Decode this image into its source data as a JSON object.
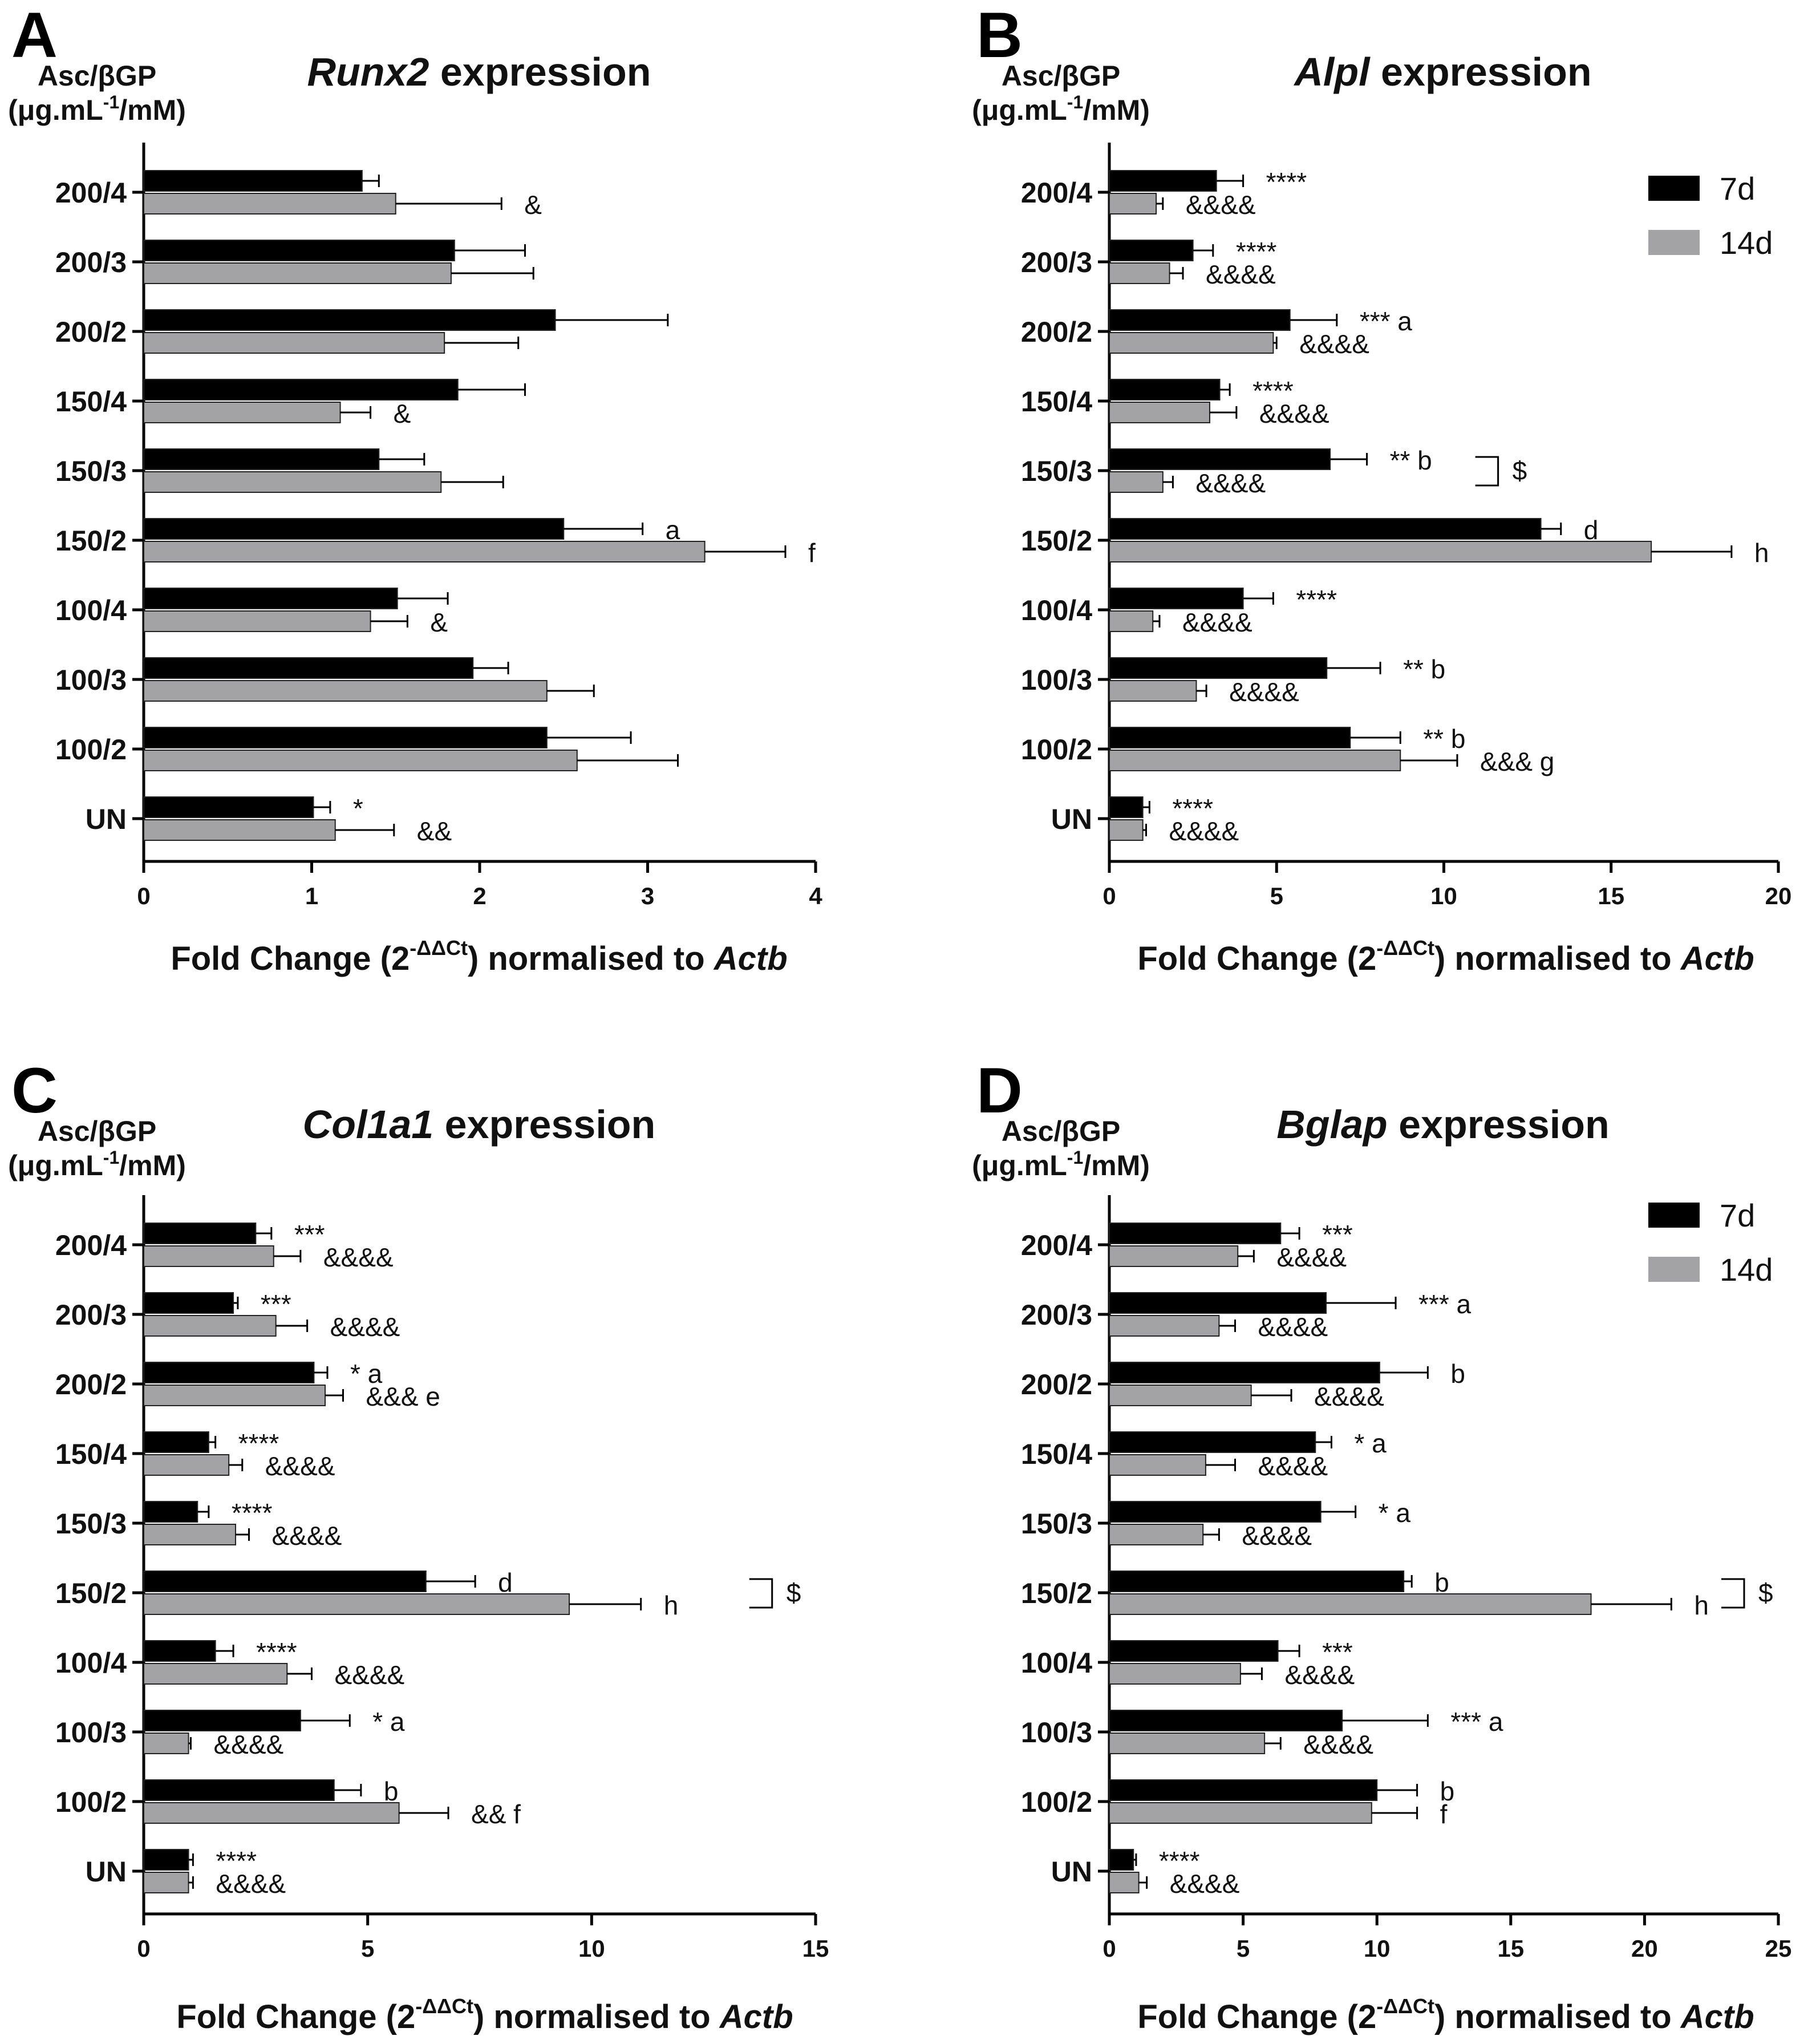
{
  "figure": {
    "legend_labels": [
      "7d",
      "14d"
    ],
    "colors": {
      "7d": "#000000",
      "14d": "#a3a3a5"
    }
  },
  "chart_data": [
    {
      "type": "bar",
      "orientation": "horizontal",
      "panel": "A",
      "title_gene": "Runx2",
      "title_rest": " expression",
      "ylabel_line1": "Asc/βGP",
      "ylabel_line2_pre": "(μg.mL",
      "ylabel_line2_sup": "-1",
      "ylabel_line2_post": "/mM)",
      "xlabel_pre": "Fold Change (2",
      "xlabel_sup": "-ΔΔCt",
      "xlabel_mid": ") normalised to ",
      "xlabel_gene": "Actb",
      "xlim": [
        0,
        4
      ],
      "xticks": [
        0,
        1,
        2,
        3,
        4
      ],
      "show_legend": false,
      "categories": [
        "200/4",
        "200/3",
        "200/2",
        "150/4",
        "150/3",
        "150/2",
        "100/4",
        "100/3",
        "100/2",
        "UN"
      ],
      "series": [
        {
          "name": "7d",
          "values": [
            1.3,
            1.85,
            2.45,
            1.87,
            1.4,
            2.5,
            1.51,
            1.96,
            2.4,
            1.01
          ],
          "errors": [
            0.1,
            0.42,
            0.67,
            0.4,
            0.27,
            0.47,
            0.3,
            0.21,
            0.5,
            0.1
          ],
          "annotations": [
            null,
            null,
            null,
            null,
            null,
            "a",
            null,
            null,
            null,
            "*"
          ]
        },
        {
          "name": "14d",
          "values": [
            1.5,
            1.83,
            1.79,
            1.17,
            1.77,
            3.34,
            1.35,
            2.4,
            2.58,
            1.14
          ],
          "errors": [
            0.63,
            0.49,
            0.44,
            0.18,
            0.37,
            0.48,
            0.22,
            0.28,
            0.6,
            0.35
          ],
          "annotations": [
            "&",
            null,
            null,
            "&",
            null,
            "f",
            "&",
            null,
            null,
            "&&"
          ]
        }
      ],
      "brackets": []
    },
    {
      "type": "bar",
      "orientation": "horizontal",
      "panel": "B",
      "title_gene": "Alpl",
      "title_rest": " expression",
      "ylabel_line1": "Asc/βGP",
      "ylabel_line2_pre": "(μg.mL",
      "ylabel_line2_sup": "-1",
      "ylabel_line2_post": "/mM)",
      "xlabel_pre": "Fold Change (2",
      "xlabel_sup": "-ΔΔCt",
      "xlabel_mid": ") normalised to ",
      "xlabel_gene": "Actb",
      "xlim": [
        0,
        20
      ],
      "xticks": [
        0,
        5,
        10,
        15,
        20
      ],
      "show_legend": true,
      "categories": [
        "200/4",
        "200/3",
        "200/2",
        "150/4",
        "150/3",
        "150/2",
        "100/4",
        "100/3",
        "100/2",
        "UN"
      ],
      "series": [
        {
          "name": "7d",
          "values": [
            3.2,
            2.5,
            5.4,
            3.3,
            6.6,
            12.9,
            4.0,
            6.5,
            7.2,
            1.0
          ],
          "errors": [
            0.8,
            0.6,
            1.4,
            0.3,
            1.1,
            0.6,
            0.9,
            1.6,
            1.5,
            0.2
          ],
          "annotations": [
            "****",
            "****",
            "*** a",
            "****",
            "** b",
            "d",
            "****",
            "** b",
            "** b",
            "****"
          ]
        },
        {
          "name": "14d",
          "values": [
            1.4,
            1.8,
            4.9,
            3.0,
            1.6,
            16.2,
            1.3,
            2.6,
            8.7,
            1.0
          ],
          "errors": [
            0.2,
            0.4,
            0.1,
            0.8,
            0.3,
            2.4,
            0.2,
            0.3,
            1.7,
            0.1
          ],
          "annotations": [
            "&&&&",
            "&&&&",
            "&&&&",
            "&&&&",
            "&&&&",
            "h",
            "&&&&",
            "&&&&",
            "&&& g",
            "&&&&"
          ]
        }
      ],
      "brackets": [
        {
          "category": "150/3",
          "label": "$"
        }
      ]
    },
    {
      "type": "bar",
      "orientation": "horizontal",
      "panel": "C",
      "title_gene": "Col1a1",
      "title_rest": " expression",
      "ylabel_line1": "Asc/βGP",
      "ylabel_line2_pre": "(μg.mL",
      "ylabel_line2_sup": "-1",
      "ylabel_line2_post": "/mM)",
      "xlabel_pre": "Fold Change (2",
      "xlabel_sup": "-ΔΔCt",
      "xlabel_mid": ") normalised to ",
      "xlabel_gene": "Actb",
      "xlim": [
        0,
        15
      ],
      "xticks": [
        0,
        5,
        10,
        15
      ],
      "show_legend": false,
      "categories": [
        "200/4",
        "200/3",
        "200/2",
        "150/4",
        "150/3",
        "150/2",
        "100/4",
        "100/3",
        "100/2",
        "UN"
      ],
      "series": [
        {
          "name": "7d",
          "values": [
            2.5,
            2.0,
            3.8,
            1.45,
            1.2,
            6.3,
            1.6,
            3.5,
            4.25,
            1.0
          ],
          "errors": [
            0.35,
            0.1,
            0.3,
            0.15,
            0.25,
            1.1,
            0.4,
            1.1,
            0.6,
            0.1
          ],
          "annotations": [
            "***",
            "***",
            "* a",
            "****",
            "****",
            "d",
            "****",
            "* a",
            "b",
            "****"
          ]
        },
        {
          "name": "14d",
          "values": [
            2.9,
            2.95,
            4.05,
            1.9,
            2.05,
            9.5,
            3.2,
            1.0,
            5.7,
            1.0
          ],
          "errors": [
            0.6,
            0.7,
            0.4,
            0.3,
            0.3,
            1.6,
            0.55,
            0.05,
            1.1,
            0.1
          ],
          "annotations": [
            "&&&&",
            "&&&&",
            "&&& e",
            "&&&&",
            "&&&&",
            "h",
            "&&&&",
            "&&&&",
            "&& f",
            "&&&&"
          ]
        }
      ],
      "brackets": [
        {
          "category": "150/2",
          "label": "$"
        }
      ]
    },
    {
      "type": "bar",
      "orientation": "horizontal",
      "panel": "D",
      "title_gene": "Bglap",
      "title_rest": " expression",
      "ylabel_line1": "Asc/βGP",
      "ylabel_line2_pre": "(μg.mL",
      "ylabel_line2_sup": "-1",
      "ylabel_line2_post": "/mM)",
      "xlabel_pre": "Fold Change (2",
      "xlabel_sup": "-ΔΔCt",
      "xlabel_mid": ") normalised to ",
      "xlabel_gene": "Actb",
      "xlim": [
        0,
        25
      ],
      "xticks": [
        0,
        5,
        10,
        15,
        20,
        25
      ],
      "show_legend": true,
      "categories": [
        "200/4",
        "200/3",
        "200/2",
        "150/4",
        "150/3",
        "150/2",
        "100/4",
        "100/3",
        "100/2",
        "UN"
      ],
      "series": [
        {
          "name": "7d",
          "values": [
            6.4,
            8.1,
            10.1,
            7.7,
            7.9,
            11.0,
            6.3,
            8.7,
            10.0,
            0.9
          ],
          "errors": [
            0.7,
            2.6,
            1.8,
            0.6,
            1.3,
            0.3,
            0.8,
            3.2,
            1.5,
            0.1
          ],
          "annotations": [
            "***",
            "*** a",
            "b",
            "* a",
            "* a",
            "b",
            "***",
            "*** a",
            "b",
            "****"
          ]
        },
        {
          "name": "14d",
          "values": [
            4.8,
            4.1,
            5.3,
            3.6,
            3.5,
            18.0,
            4.9,
            5.8,
            9.8,
            1.1
          ],
          "errors": [
            0.6,
            0.6,
            1.5,
            1.1,
            0.6,
            3.0,
            0.8,
            0.6,
            1.7,
            0.3
          ],
          "annotations": [
            "&&&&",
            "&&&&",
            "&&&&",
            "&&&&",
            "&&&&",
            "h",
            "&&&&",
            "&&&&",
            "f",
            "&&&&"
          ]
        }
      ],
      "brackets": [
        {
          "category": "150/2",
          "label": "$"
        }
      ]
    }
  ]
}
